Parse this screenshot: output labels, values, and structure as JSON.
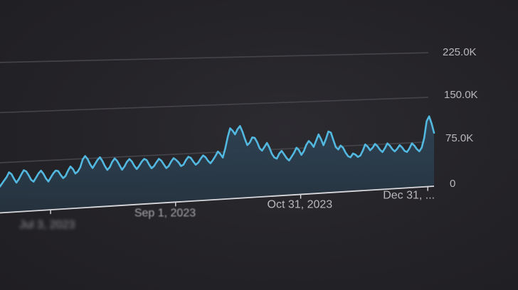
{
  "chart_data": {
    "type": "area",
    "title": "",
    "xlabel": "",
    "ylabel": "",
    "ylim": [
      0,
      225000
    ],
    "yticks": [
      {
        "value": 0,
        "label": "0"
      },
      {
        "value": 75000,
        "label": "75.0K"
      },
      {
        "value": 150000,
        "label": "150.0K"
      },
      {
        "value": 225000,
        "label": "225.0K"
      }
    ],
    "xticks": [
      {
        "date": "2023-07-03",
        "label": "Jul 3, 2023"
      },
      {
        "date": "2023-09-01",
        "label": "Sep 1, 2023"
      },
      {
        "date": "2023-10-31",
        "label": "Oct 31, 2023"
      },
      {
        "date": "2023-12-31",
        "label": "Dec 31, ..."
      }
    ],
    "x_start": "2023-06-06",
    "x_end": "2024-01-03",
    "grid": true,
    "line_color": "#52b8e0",
    "fill_color": "#2a3a4a",
    "series": [
      {
        "values": [
          50000,
          47000,
          38000,
          43000,
          48000,
          53000,
          60000,
          57000,
          50000,
          44000,
          49000,
          56000,
          62000,
          60000,
          54000,
          47000,
          44000,
          50000,
          56000,
          60000,
          55000,
          48000,
          43000,
          49000,
          55000,
          59000,
          58000,
          52000,
          47000,
          50000,
          58000,
          64000,
          60000,
          53000,
          56000,
          62000,
          74000,
          79000,
          74000,
          66000,
          60000,
          66000,
          72000,
          76000,
          70000,
          62000,
          56000,
          60000,
          68000,
          73000,
          69000,
          62000,
          55000,
          60000,
          67000,
          71000,
          67000,
          60000,
          55000,
          60000,
          66000,
          70000,
          68000,
          61000,
          55000,
          58000,
          64000,
          69000,
          66000,
          60000,
          54000,
          57000,
          64000,
          69000,
          66000,
          62000,
          56000,
          58000,
          65000,
          70000,
          68000,
          62000,
          57000,
          60000,
          66000,
          71000,
          68000,
          62000,
          58000,
          63000,
          69000,
          76000,
          72000,
          66000,
          80000,
          98000,
          112000,
          108000,
          102000,
          110000,
          115000,
          106000,
          94000,
          84000,
          88000,
          96000,
          95000,
          88000,
          78000,
          74000,
          80000,
          86000,
          78000,
          68000,
          62000,
          60000,
          68000,
          72000,
          66000,
          60000,
          56000,
          62000,
          68000,
          76000,
          72000,
          64000,
          70000,
          80000,
          86000,
          82000,
          76000,
          86000,
          96000,
          88000,
          78000,
          88000,
          100000,
          98000,
          86000,
          74000,
          70000,
          76000,
          72000,
          64000,
          58000,
          56000,
          62000,
          60000,
          56000,
          58000,
          66000,
          76000,
          72000,
          66000,
          70000,
          76000,
          72000,
          66000,
          62000,
          68000,
          76000,
          72000,
          66000,
          62000,
          66000,
          72000,
          68000,
          62000,
          60000,
          66000,
          74000,
          70000,
          64000,
          60000,
          66000,
          82000,
          110000,
          118000,
          106000,
          90000
        ]
      }
    ]
  }
}
